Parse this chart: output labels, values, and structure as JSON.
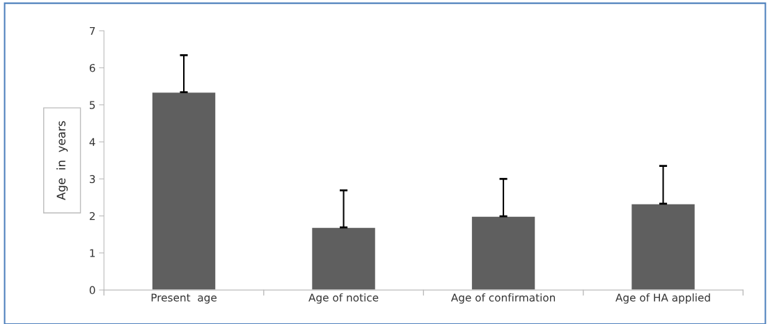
{
  "chart_data": {
    "type": "bar",
    "ylabel": "Age  in  years",
    "categories": [
      "Present  age",
      "Age of notice",
      "Age of confirmation",
      "Age of HA applied"
    ],
    "values": [
      5.34,
      1.69,
      1.99,
      2.33
    ],
    "errors": [
      [
        5.34,
        6.34
      ],
      [
        1.69,
        2.69
      ],
      [
        1.99,
        3.0
      ],
      [
        2.33,
        3.35
      ]
    ],
    "color": "#5f5f5f",
    "ylim": [
      0,
      7
    ],
    "yticks": [
      0,
      1,
      2,
      3,
      4,
      5,
      6,
      7
    ],
    "grid": false
  }
}
